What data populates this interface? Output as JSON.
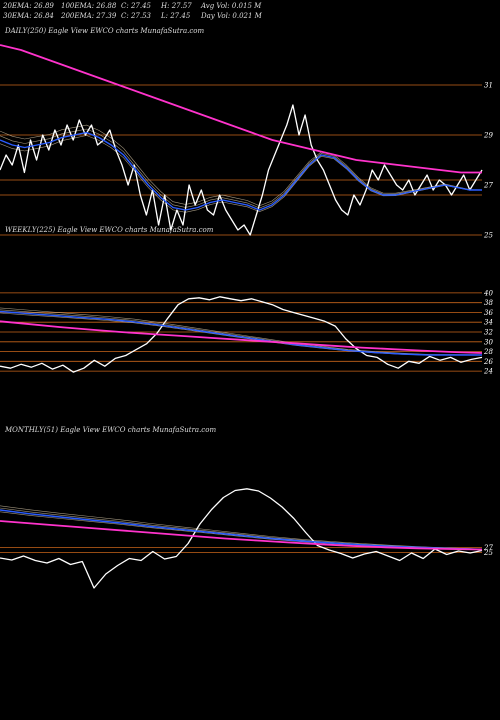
{
  "header": {
    "row1": [
      "20EMA: 26.89",
      "100EMA: 26.88",
      "C: 27.45",
      "H: 27.57",
      "Avg Vol: 0.015 M"
    ],
    "row2": [
      "30EMA: 26.84",
      "200EMA: 27.39",
      "C: 27.53",
      "L: 27.45",
      "Day Vol: 0.021 M"
    ]
  },
  "panels": {
    "daily_label": "DAILY(250) Eagle  View  EWCO charts MunafaSutra.com",
    "weekly_label": "WEEKLY(225) Eagle  View  EWCO charts MunafaSutra.com",
    "monthly_label": "MONTHLY(51) Eagle  View  EWCO charts MunafaSutra.com"
  },
  "colors": {
    "background": "#000000",
    "price": "#ffffff",
    "ema_fast": "#2a5cff",
    "ema_slow": "#ff33cc",
    "support_lines": "#c8651a",
    "ema_minor": "#d8c8a8"
  },
  "chart_data": [
    {
      "type": "line",
      "name": "daily",
      "ylim": [
        24.4,
        32.8
      ],
      "y_ticks": [
        31,
        29,
        27,
        25
      ],
      "hlines": [
        31,
        29,
        27.2,
        26.6,
        25
      ],
      "series": [
        {
          "name": "price",
          "values": [
            27.6,
            28.2,
            27.8,
            28.6,
            27.5,
            28.8,
            28.0,
            29.0,
            28.4,
            29.2,
            28.6,
            29.4,
            28.8,
            29.6,
            29.0,
            29.4,
            28.6,
            28.8,
            29.2,
            28.4,
            27.8,
            27.0,
            27.8,
            26.6,
            25.8,
            26.8,
            25.4,
            26.6,
            25.2,
            26.0,
            25.4,
            27.0,
            26.2,
            26.8,
            26.0,
            25.8,
            26.6,
            26.0,
            25.6,
            25.2,
            25.4,
            25.0,
            25.8,
            26.6,
            27.6,
            28.2,
            28.8,
            29.4,
            30.2,
            29.0,
            29.8,
            28.6,
            28.0,
            27.6,
            27.0,
            26.4,
            26.0,
            25.8,
            26.6,
            26.2,
            26.8,
            27.6,
            27.2,
            27.8,
            27.4,
            27.0,
            26.8,
            27.2,
            26.6,
            27.0,
            27.4,
            26.8,
            27.2,
            27.0,
            26.6,
            27.0,
            27.4,
            26.8,
            27.2,
            27.6
          ]
        },
        {
          "name": "EMA fast",
          "values": [
            28.8,
            28.6,
            28.5,
            28.6,
            28.7,
            28.9,
            29.0,
            29.1,
            28.9,
            28.6,
            28.2,
            27.6,
            27.0,
            26.5,
            26.1,
            26.0,
            26.1,
            26.3,
            26.4,
            26.3,
            26.2,
            26.0,
            26.2,
            26.6,
            27.2,
            27.8,
            28.2,
            28.1,
            27.7,
            27.2,
            26.8,
            26.6,
            26.6,
            26.7,
            26.8,
            26.9,
            27.0,
            26.9,
            26.8,
            26.8
          ]
        },
        {
          "name": "EMA slow",
          "values": [
            32.6,
            32.4,
            32.1,
            31.8,
            31.5,
            31.2,
            30.9,
            30.6,
            30.3,
            30.0,
            29.7,
            29.4,
            29.1,
            28.8,
            28.6,
            28.4,
            28.2,
            28.0,
            27.9,
            27.8,
            27.7,
            27.6,
            27.5,
            27.5
          ]
        }
      ]
    },
    {
      "type": "line",
      "name": "weekly",
      "ylim": [
        23.2,
        40.6
      ],
      "y_ticks": [
        40,
        38,
        36,
        34,
        32,
        30,
        28,
        26,
        24
      ],
      "hlines": [
        40,
        38,
        36,
        34,
        32,
        30,
        28,
        26,
        24
      ],
      "series": [
        {
          "name": "price",
          "values": [
            25.0,
            24.6,
            25.4,
            24.8,
            25.6,
            24.4,
            25.2,
            23.8,
            24.6,
            26.2,
            25.0,
            26.6,
            27.2,
            28.4,
            29.6,
            31.8,
            34.8,
            37.6,
            38.8,
            39.0,
            38.6,
            39.2,
            38.8,
            38.4,
            38.8,
            38.2,
            37.6,
            36.6,
            36.0,
            35.4,
            34.8,
            34.2,
            33.2,
            30.6,
            28.6,
            27.2,
            26.8,
            25.4,
            24.6,
            26.0,
            25.6,
            27.0,
            26.2,
            26.8,
            25.8,
            26.4,
            26.8
          ]
        },
        {
          "name": "EMA fast",
          "values": [
            36.2,
            35.8,
            35.4,
            35.0,
            34.6,
            34.1,
            33.4,
            32.6,
            31.8,
            31.0,
            30.2,
            29.4,
            28.8,
            28.2,
            27.8,
            27.5,
            27.3,
            27.3,
            27.3
          ]
        },
        {
          "name": "EMA slow",
          "values": [
            34.2,
            33.6,
            33.0,
            32.5,
            32.0,
            31.6,
            31.2,
            30.8,
            30.4,
            30.0,
            29.6,
            29.2,
            28.8,
            28.5,
            28.2,
            27.9,
            27.7
          ]
        }
      ]
    },
    {
      "type": "line",
      "name": "monthly",
      "ylim": [
        10,
        50
      ],
      "y_ticks": [
        27,
        25
      ],
      "hlines": [
        27,
        25
      ],
      "series": [
        {
          "name": "price",
          "values": [
            22.8,
            22.0,
            23.6,
            21.8,
            20.8,
            22.6,
            20.2,
            21.4,
            10.8,
            16.4,
            19.8,
            22.6,
            21.8,
            25.4,
            22.4,
            23.4,
            28.6,
            36.4,
            42.2,
            47.0,
            49.8,
            50.5,
            49.6,
            46.8,
            43.2,
            38.6,
            33.0,
            27.8,
            26.0,
            24.6,
            22.8,
            24.4,
            25.4,
            23.6,
            21.8,
            24.8,
            22.6,
            26.4,
            24.2,
            25.6,
            24.8,
            25.8
          ]
        },
        {
          "name": "EMA fast",
          "values": [
            42.0,
            40.5,
            39.2,
            38.0,
            36.8,
            35.4,
            34.2,
            33.0,
            31.8,
            30.6,
            29.6,
            28.8,
            28.1,
            27.5,
            27.0,
            26.6,
            26.3
          ]
        },
        {
          "name": "EMA slow",
          "values": [
            37.6,
            36.6,
            35.6,
            34.6,
            33.6,
            32.6,
            31.6,
            30.6,
            29.8,
            29.0,
            28.3,
            27.6,
            27.1,
            26.7,
            26.4,
            26.2
          ]
        }
      ]
    }
  ]
}
